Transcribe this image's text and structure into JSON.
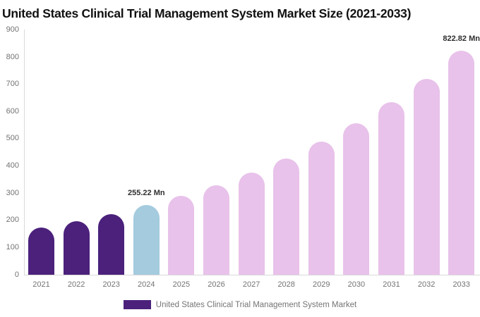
{
  "title": "United States Clinical Trial Management System Market Size (2021-2033)",
  "chart_data": {
    "type": "bar",
    "title": "United States Clinical Trial Management System Market Size (2021-2033)",
    "categories": [
      "2021",
      "2022",
      "2023",
      "2024",
      "2025",
      "2026",
      "2027",
      "2028",
      "2029",
      "2030",
      "2031",
      "2032",
      "2033"
    ],
    "values": [
      173,
      198,
      224,
      255.22,
      290,
      330,
      376,
      428,
      489,
      557,
      634,
      720,
      822.82
    ],
    "unit": "Mn",
    "xlabel": "",
    "ylabel": "",
    "ylim": [
      0,
      900
    ],
    "yticks": [
      0,
      100,
      200,
      300,
      400,
      500,
      600,
      700,
      800,
      900
    ],
    "grid": false,
    "legend_position": "bottom",
    "legend_entries": [
      "United States Clinical Trial Management System Market"
    ],
    "bar_colors": [
      "#4b217c",
      "#4b217c",
      "#4b217c",
      "#a4cbde",
      "#e8c2ea",
      "#e8c2ea",
      "#e8c2ea",
      "#e8c2ea",
      "#e8c2ea",
      "#e8c2ea",
      "#e8c2ea",
      "#e8c2ea",
      "#e8c2ea"
    ],
    "data_labels": [
      {
        "index": 3,
        "text": "255.22 Mn"
      },
      {
        "index": 12,
        "text": "822.82 Mn"
      }
    ]
  },
  "legend": {
    "label": "United States Clinical Trial Management System Market",
    "swatch_color": "#4b217c"
  },
  "colors": {
    "historical_bar": "#4b217c",
    "base_year_bar": "#a4cbde",
    "forecast_bar": "#e8c2ea",
    "axis_line": "#d9d9d9",
    "axis_text": "#737373",
    "title_text": "#111111",
    "data_label_text": "#2e2e2e"
  }
}
